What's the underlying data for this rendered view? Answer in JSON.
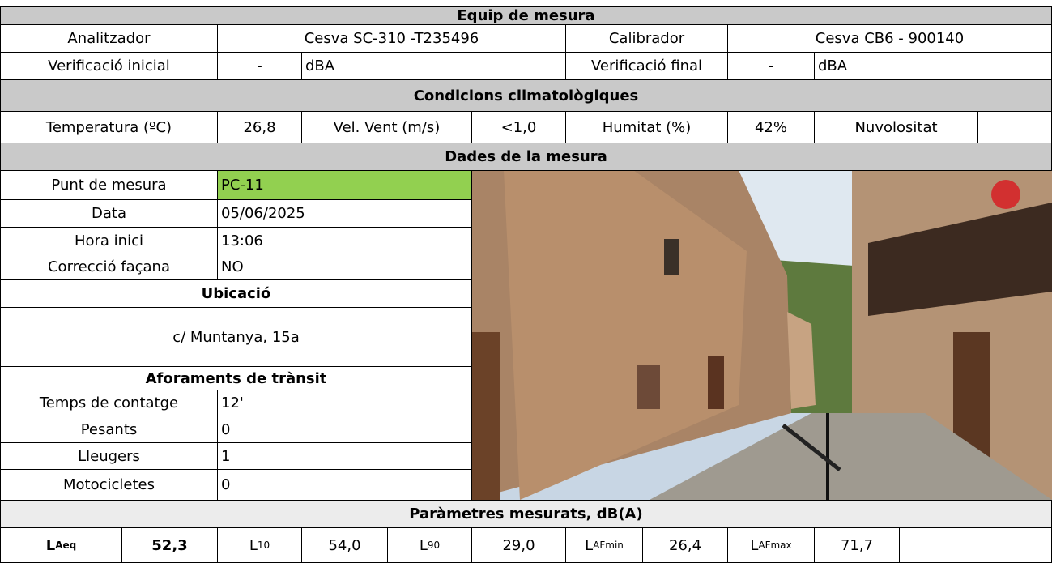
{
  "equip": {
    "title": "Equip de mesura",
    "analitzador_label": "Analitzador",
    "analitzador": "Cesva SC-310 -T235496",
    "calibrador_label": "Calibrador",
    "calibrador": "Cesva CB6 - 900140",
    "verif_inicial_label": "Verificació inicial",
    "verif_inicial": "-",
    "verif_inicial_unit": "dBA",
    "verif_final_label": "Verificació final",
    "verif_final": "-",
    "verif_final_unit": "dBA"
  },
  "condicions": {
    "title": "Condicions climatològiques",
    "temperatura_label": "Temperatura (ºC)",
    "temperatura": "26,8",
    "vent_label": "Vel. Vent (m/s)",
    "vent": "<1,0",
    "humitat_label": "Humitat (%)",
    "humitat": "42%",
    "nuvolositat_label": "Nuvolositat"
  },
  "dades": {
    "title": "Dades de la mesura",
    "rows": [
      [
        "Punt de mesura",
        "PC-11"
      ],
      [
        "Data",
        "05/06/2025"
      ],
      [
        "Hora inici",
        "13:06"
      ],
      [
        "Correcció façana",
        "NO"
      ]
    ],
    "ubicacio_title": "Ubicació",
    "ubicacio": "c/ Muntanya, 15a",
    "aforaments_title": "Aforaments de trànsit",
    "aforaments": [
      [
        "Temps de contatge",
        "12'"
      ],
      [
        "Pesants",
        "0"
      ],
      [
        "Lleugers",
        "1"
      ],
      [
        "Motocicletes",
        "0"
      ]
    ]
  },
  "parametres": {
    "title": "Paràmetres mesurats, dB(A)",
    "items": [
      {
        "symbol": "L",
        "sub": "Aeq",
        "value": "52,3"
      },
      {
        "symbol": "L",
        "sub": "10",
        "value": "54,0"
      },
      {
        "symbol": "L",
        "sub": "90",
        "value": "29,0"
      },
      {
        "symbol": "L",
        "sub": "AFmin",
        "value": "26,4"
      },
      {
        "symbol": "L",
        "sub": "AFmax",
        "value": "71,7"
      }
    ]
  }
}
